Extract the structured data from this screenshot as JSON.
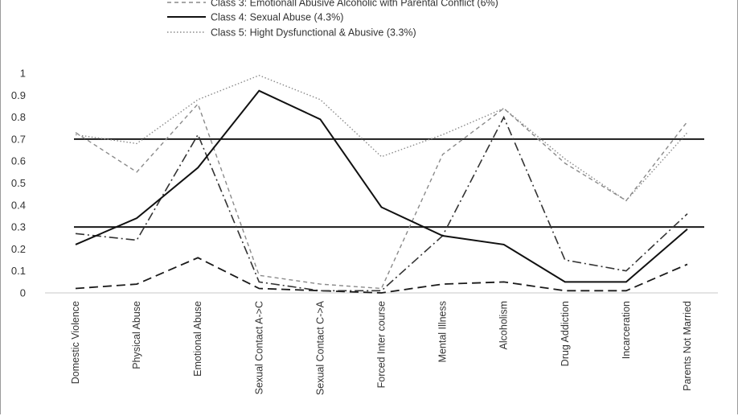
{
  "chart_data": {
    "type": "line",
    "categories": [
      "Domestic Violence",
      "Physical Abuse",
      "Emotional Abuse",
      "Sexual Contact A->C",
      "Sexual Contact C->A",
      "Forced Inter course",
      "Mental Illness",
      "Alcoholism",
      "Drug Addiction",
      "Incarceration",
      "Parents Not Married"
    ],
    "yticks": [
      "0",
      "0.1",
      "0.2",
      "0.3",
      "0.4",
      "0.5",
      "0.6",
      "0.7",
      "0.8",
      "0.9",
      "1"
    ],
    "ylim": [
      0,
      1
    ],
    "reference_lines": [
      0.3,
      0.7
    ],
    "legend_position": "top",
    "series": [
      {
        "id": "c1",
        "values": [
          0.02,
          0.04,
          0.16,
          0.02,
          0.01,
          0.0,
          0.04,
          0.05,
          0.01,
          0.01,
          0.13
        ],
        "color": "#1a1a1a",
        "dash": "11,6",
        "width": 1.8
      },
      {
        "id": "c2",
        "values": [
          0.27,
          0.24,
          0.72,
          0.05,
          0.01,
          0.01,
          0.26,
          0.8,
          0.15,
          0.1,
          0.36
        ],
        "color": "#333333",
        "dash": "11,4,2,4",
        "width": 1.6
      },
      {
        "name": "Class 3: Emotionall Abusive Alcoholic with Parental Conflict (6%)",
        "values": [
          0.73,
          0.55,
          0.86,
          0.08,
          0.04,
          0.02,
          0.63,
          0.84,
          0.59,
          0.42,
          0.78
        ],
        "color": "#8a8a8a",
        "dash": "5,4",
        "width": 1.4
      },
      {
        "name": "Class 4: Sexual Abuse (4.3%)",
        "values": [
          0.22,
          0.34,
          0.57,
          0.92,
          0.79,
          0.39,
          0.26,
          0.22,
          0.05,
          0.05,
          0.29
        ],
        "color": "#111111",
        "dash": "",
        "width": 2
      },
      {
        "name": "Class 5: Hight Dysfunctional & Abusive (3.3%)",
        "values": [
          0.72,
          0.68,
          0.88,
          0.99,
          0.88,
          0.62,
          0.72,
          0.84,
          0.61,
          0.42,
          0.73
        ],
        "color": "#8a8a8a",
        "dash": "1.5,2.5",
        "width": 1.4
      }
    ]
  }
}
